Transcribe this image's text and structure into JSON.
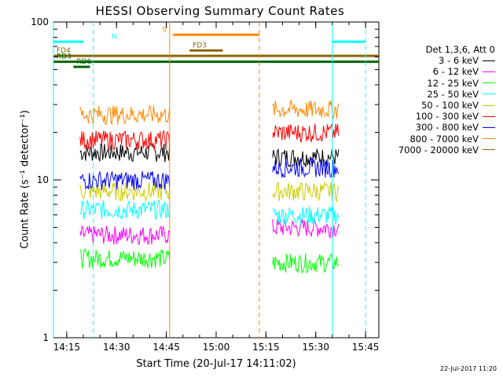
{
  "header": {
    "title": "HESSI Observing Summary Count Rates"
  },
  "legend": {
    "heading": "Det 1,3,6, Att 0",
    "entries": [
      {
        "label": "3 - 6 keV",
        "color": "#000000"
      },
      {
        "label": "6 - 12 keV",
        "color": "#ff00ff"
      },
      {
        "label": "12 - 25 keV",
        "color": "#00ff00"
      },
      {
        "label": "25 - 50 keV",
        "color": "#00ffff"
      },
      {
        "label": "50 - 100 keV",
        "color": "#cccc00"
      },
      {
        "label": "100 - 300 keV",
        "color": "#ff0000"
      },
      {
        "label": "300 - 800 keV",
        "color": "#0000ff"
      },
      {
        "label": "800 - 7000 keV",
        "color": "#ff8800"
      },
      {
        "label": "7000 - 20000 keV",
        "color": "#8b6508"
      }
    ]
  },
  "footer": {
    "timestamp": "22-Jul-2017 11:20"
  },
  "chart_data": {
    "type": "line",
    "title": "HESSI Observing Summary Count Rates",
    "xlabel": "Start Time (20-Jul-17 14:11:02)",
    "ylabel": "Count Rate (s⁻¹ detector⁻¹)",
    "x_unit": "time",
    "xlim": [
      "14:11",
      "15:49"
    ],
    "ylim": [
      1,
      100
    ],
    "yscale": "log",
    "xticks": [
      "14:15",
      "14:30",
      "14:45",
      "15:00",
      "15:15",
      "15:30",
      "15:45"
    ],
    "yticks": [
      "1",
      "10",
      "100"
    ],
    "intervals": [
      {
        "start": "14:19",
        "end": "14:46"
      },
      {
        "start": "15:17",
        "end": "15:37"
      }
    ],
    "series": [
      {
        "name": "3 - 6 keV",
        "color": "#000000",
        "level": [
          15,
          14
        ]
      },
      {
        "name": "6 - 12 keV",
        "color": "#ff00ff",
        "level": [
          4.5,
          5
        ]
      },
      {
        "name": "12 - 25 keV",
        "color": "#00ff00",
        "level": [
          3.2,
          3
        ]
      },
      {
        "name": "25 - 50 keV",
        "color": "#00ffff",
        "level": [
          6.5,
          6
        ]
      },
      {
        "name": "50 - 100 keV",
        "color": "#cccc00",
        "level": [
          8.5,
          8.5
        ]
      },
      {
        "name": "100 - 300 keV",
        "color": "#ff0000",
        "level": [
          18,
          20
        ]
      },
      {
        "name": "300 - 800 keV",
        "color": "#0000ff",
        "level": [
          10,
          12
        ]
      },
      {
        "name": "800 - 7000 keV",
        "color": "#ff8800",
        "level": [
          26,
          28
        ]
      },
      {
        "name": "7000 - 20000 keV",
        "color": "#8b6508",
        "level": [
          0,
          0
        ]
      }
    ],
    "flags": [
      {
        "label": "N",
        "color": "#00ffff",
        "segments": [
          [
            "14:11",
            "14:20"
          ],
          [
            "15:35",
            "15:45"
          ]
        ],
        "y": 75
      },
      {
        "label": "S",
        "color": "#ff8800",
        "segments": [
          [
            "14:47",
            "15:13"
          ]
        ],
        "y": 83
      },
      {
        "label": "FD3",
        "color": "#8b6508",
        "segments": [
          [
            "14:52",
            "15:02"
          ]
        ],
        "y": 66
      },
      {
        "label": "FD4",
        "color": "#8b6508",
        "segments": [
          [
            "14:11",
            "15:49"
          ]
        ],
        "y": 61
      },
      {
        "label": "RD3",
        "color": "#006600",
        "segments": [
          [
            "14:11",
            "15:49"
          ]
        ],
        "y": 56
      },
      {
        "label": "RD6",
        "color": "#006600",
        "segments": [
          [
            "14:17",
            "14:22"
          ]
        ],
        "y": 52
      }
    ],
    "vlines": [
      {
        "time": "14:11",
        "color": "#00ffff",
        "dash": false
      },
      {
        "time": "14:23",
        "color": "#00ffff",
        "dash": true
      },
      {
        "time": "14:46",
        "color": "#ff8800",
        "dash": false
      },
      {
        "time": "15:13",
        "color": "#ff8800",
        "dash": true
      },
      {
        "time": "15:35",
        "color": "#00ffff",
        "dash": false
      },
      {
        "time": "15:45",
        "color": "#00ffff",
        "dash": true
      }
    ]
  }
}
